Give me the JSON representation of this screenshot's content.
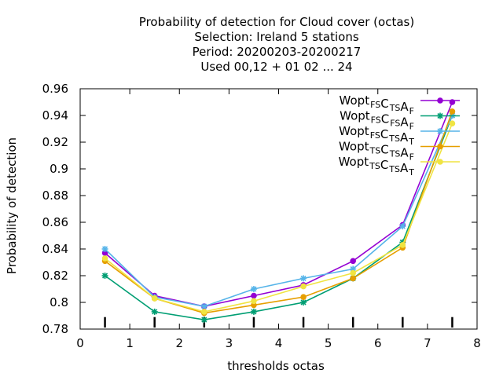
{
  "chart_data": {
    "type": "line",
    "title_lines": [
      "Probability of detection  for Cloud cover (octas)",
      "Selection: Ireland      5 stations",
      "Period: 20200203-20200217",
      "Used  00,12  + 01 02 ... 24"
    ],
    "xlabel": "thresholds octas",
    "ylabel": "Probability of detection",
    "xlim": [
      0,
      8
    ],
    "ylim": [
      0.78,
      0.96
    ],
    "xticks": [
      0,
      1,
      2,
      3,
      4,
      5,
      6,
      7,
      8
    ],
    "xtick_labels": [
      "0",
      "1",
      "2",
      "3",
      "4",
      "5",
      "6",
      "7",
      "8"
    ],
    "yticks": [
      0.78,
      0.8,
      0.82,
      0.84,
      0.86,
      0.88,
      0.9,
      0.92,
      0.94,
      0.96
    ],
    "ytick_labels": [
      "0.78",
      "0.8",
      "0.82",
      "0.84",
      "0.86",
      "0.88",
      "0.9",
      "0.92",
      "0.94",
      "0.96"
    ],
    "grid": false,
    "legend_position": "top-right",
    "x": [
      0.5,
      1.5,
      2.5,
      3.5,
      4.5,
      5.5,
      6.5,
      7.5
    ],
    "series": [
      {
        "name": "Wopt FS C TS A F",
        "legend_parts": [
          [
            "Wopt",
            ""
          ],
          [
            "FS",
            "sub"
          ],
          [
            "C",
            ""
          ],
          [
            "TS",
            "sub"
          ],
          [
            "A",
            ""
          ],
          [
            "F",
            "sub"
          ]
        ],
        "color": "#9400d3",
        "marker": "circle",
        "values": [
          0.837,
          0.805,
          0.797,
          0.805,
          0.813,
          0.831,
          0.858,
          0.95
        ]
      },
      {
        "name": "Wopt FS C FS A F",
        "legend_parts": [
          [
            "Wopt",
            ""
          ],
          [
            "FS",
            "sub"
          ],
          [
            "C",
            ""
          ],
          [
            "FS",
            "sub"
          ],
          [
            "A",
            ""
          ],
          [
            "F",
            "sub"
          ]
        ],
        "color": "#009e73",
        "marker": "star",
        "values": [
          0.82,
          0.793,
          0.787,
          0.793,
          0.8,
          0.818,
          0.845,
          0.94
        ]
      },
      {
        "name": "Wopt FS C TS A T",
        "legend_parts": [
          [
            "Wopt",
            ""
          ],
          [
            "FS",
            "sub"
          ],
          [
            "C",
            ""
          ],
          [
            "TS",
            "sub"
          ],
          [
            "A",
            ""
          ],
          [
            "T",
            "sub"
          ]
        ],
        "color": "#56b4e9",
        "marker": "star",
        "values": [
          0.84,
          0.804,
          0.797,
          0.81,
          0.818,
          0.825,
          0.857,
          0.94
        ]
      },
      {
        "name": "Wopt TS C TS A F",
        "legend_parts": [
          [
            "Wopt",
            ""
          ],
          [
            "TS",
            "sub"
          ],
          [
            "C",
            ""
          ],
          [
            "TS",
            "sub"
          ],
          [
            "A",
            ""
          ],
          [
            "F",
            "sub"
          ]
        ],
        "color": "#e69f00",
        "marker": "circle",
        "values": [
          0.831,
          0.803,
          0.792,
          0.798,
          0.804,
          0.818,
          0.841,
          0.943
        ]
      },
      {
        "name": "Wopt TS C TS A T",
        "legend_parts": [
          [
            "Wopt",
            ""
          ],
          [
            "TS",
            "sub"
          ],
          [
            "C",
            ""
          ],
          [
            "TS",
            "sub"
          ],
          [
            "A",
            ""
          ],
          [
            "T",
            "sub"
          ]
        ],
        "color": "#f0e442",
        "marker": "circle",
        "values": [
          0.833,
          0.803,
          0.793,
          0.801,
          0.812,
          0.822,
          0.843,
          0.934
        ]
      }
    ]
  }
}
